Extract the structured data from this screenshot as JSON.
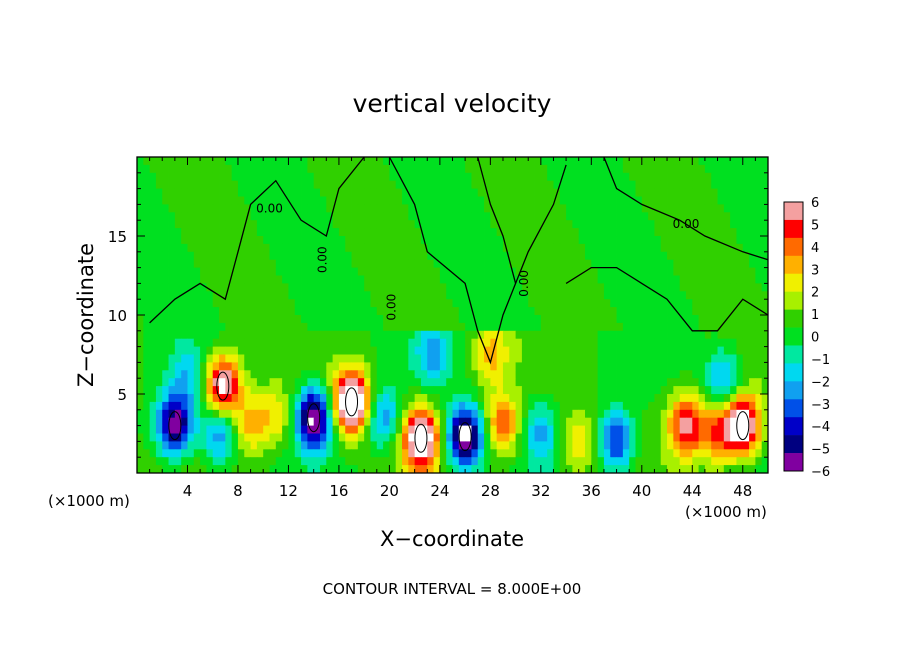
{
  "chart_data": {
    "type": "heatmap",
    "title": "vertical velocity",
    "xlabel": "X−coordinate",
    "ylabel": "Z−coordinate",
    "x_unit_left": "(×1000 m)",
    "x_unit_right": "(×1000 m)",
    "footer": "CONTOUR INTERVAL = 8.000E+00",
    "xlim": [
      0,
      50
    ],
    "ylim": [
      0,
      20
    ],
    "x_ticks": [
      4,
      8,
      12,
      16,
      20,
      24,
      28,
      32,
      36,
      40,
      44,
      48
    ],
    "y_ticks": [
      5,
      10,
      15
    ],
    "contour_label": "0.00",
    "colorbar": {
      "range": [
        -6,
        6
      ],
      "ticks": [
        "6",
        "5",
        "4",
        "3",
        "2",
        "1",
        "0",
        "−1",
        "−2",
        "−3",
        "−4",
        "−5",
        "−6"
      ],
      "colors": [
        "#f4a0a0",
        "#ff0000",
        "#ff6a00",
        "#ffb000",
        "#f0f000",
        "#a8f000",
        "#30d000",
        "#00e020",
        "#00e8a0",
        "#00d8f0",
        "#10a0f0",
        "#0050e8",
        "#0000c8",
        "#000080",
        "#8000a0"
      ]
    },
    "features": [
      {
        "x": 3.0,
        "z": 3.0,
        "w": -6.5
      },
      {
        "x": 4.0,
        "z": 6.0,
        "w": -2.0
      },
      {
        "x": 6.8,
        "z": 5.5,
        "w": 6.5
      },
      {
        "x": 6.5,
        "z": 2.5,
        "w": -3.5
      },
      {
        "x": 9.0,
        "z": 3.0,
        "w": 2.5
      },
      {
        "x": 11.0,
        "z": 3.5,
        "w": 2.0
      },
      {
        "x": 14.0,
        "z": 3.5,
        "w": -7.0
      },
      {
        "x": 17.0,
        "z": 4.5,
        "w": 8.5
      },
      {
        "x": 19.5,
        "z": 3.5,
        "w": -3.0
      },
      {
        "x": 22.5,
        "z": 2.2,
        "w": 7.5
      },
      {
        "x": 23.5,
        "z": 7.5,
        "w": -2.5
      },
      {
        "x": 26.0,
        "z": 2.3,
        "w": -7.5
      },
      {
        "x": 29.0,
        "z": 3.0,
        "w": 4.0
      },
      {
        "x": 28.0,
        "z": 7.5,
        "w": 2.5
      },
      {
        "x": 32.0,
        "z": 2.5,
        "w": -2.5
      },
      {
        "x": 35.0,
        "z": 2.0,
        "w": 2.5
      },
      {
        "x": 38.0,
        "z": 2.0,
        "w": -4.5
      },
      {
        "x": 43.5,
        "z": 3.0,
        "w": 5.0
      },
      {
        "x": 46.0,
        "z": 2.5,
        "w": 3.5
      },
      {
        "x": 48.0,
        "z": 3.0,
        "w": 7.0
      },
      {
        "x": 46.5,
        "z": 6.0,
        "w": -3.0
      }
    ]
  }
}
